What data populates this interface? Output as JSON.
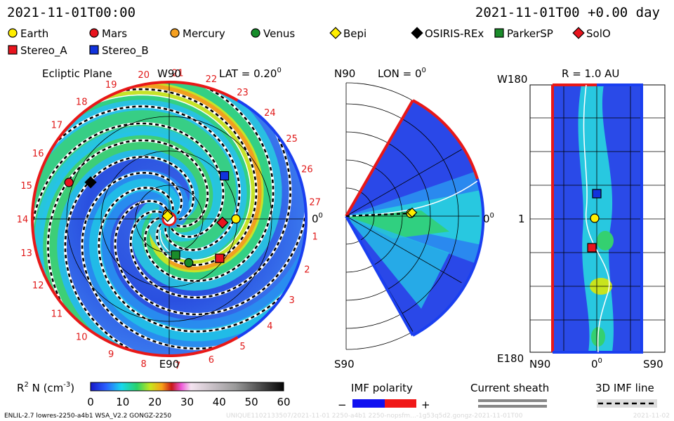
{
  "header": {
    "time_left": "2021-11-01T00:00",
    "time_right": "2021-11-01T00 +0.00 day"
  },
  "legend": [
    {
      "label": "Earth",
      "shape": "circle",
      "color": "#ffee00"
    },
    {
      "label": "Mars",
      "shape": "circle",
      "color": "#e8141e"
    },
    {
      "label": "Mercury",
      "shape": "circle",
      "color": "#f5a020"
    },
    {
      "label": "Venus",
      "shape": "circle",
      "color": "#168c2a"
    },
    {
      "label": "Bepi",
      "shape": "diamond",
      "color": "#ffee00"
    },
    {
      "label": "OSIRIS-REx",
      "shape": "diamond",
      "color": "#000000"
    },
    {
      "label": "ParkerSP",
      "shape": "square",
      "color": "#1a8c2a"
    },
    {
      "label": "SolO",
      "shape": "diamond",
      "color": "#e8141e"
    },
    {
      "label": "Stereo_A",
      "shape": "square",
      "color": "#e8141e"
    },
    {
      "label": "Stereo_B",
      "shape": "square",
      "color": "#1133dd"
    }
  ],
  "panels": {
    "ecliptic": {
      "title": "Ecliptic Plane",
      "top": "W90",
      "lat": "LAT = 0.20",
      "lat_sup": "0",
      "right": "0",
      "right_sup": "0",
      "bottom": "E90"
    },
    "meridional": {
      "top_left": "N90",
      "lon": "LON = 0",
      "lon_sup": "0",
      "right": "0",
      "right_sup": "0",
      "bottom": "S90"
    },
    "radial": {
      "r": "R = 1.0 AU",
      "top_left": "W180",
      "mid_left": "1",
      "bottom_left": "E180",
      "n90": "N90",
      "center": "0",
      "center_sup": "0",
      "s90": "S90"
    }
  },
  "chart_data": {
    "type": "heatmap",
    "carrington_labels": [
      "20",
      "21",
      "22",
      "23",
      "24",
      "25",
      "26",
      "27",
      "1",
      "2",
      "3",
      "4",
      "5",
      "6",
      "7",
      "8",
      "9",
      "10",
      "11",
      "12",
      "13",
      "14",
      "15",
      "16",
      "17",
      "18",
      "19"
    ],
    "bodies": [
      {
        "name": "Earth",
        "r_au": 1.0,
        "lon_deg": 0
      },
      {
        "name": "Mercury",
        "r_au": 0.08,
        "lon_deg": 110
      },
      {
        "name": "Bepi",
        "r_au": 0.05,
        "lon_deg": 120
      },
      {
        "name": "Venus",
        "r_au": 0.72,
        "lon_deg": -66
      },
      {
        "name": "Mars",
        "r_au": 1.6,
        "lon_deg": 160
      },
      {
        "name": "OSIRIS-REx",
        "r_au": 1.3,
        "lon_deg": 155
      },
      {
        "name": "ParkerSP",
        "r_au": 0.55,
        "lon_deg": -80
      },
      {
        "name": "SolO",
        "r_au": 0.8,
        "lon_deg": -4
      },
      {
        "name": "Stereo_A",
        "r_au": 0.96,
        "lon_deg": -38
      },
      {
        "name": "Stereo_B",
        "r_au": 1.05,
        "lon_deg": 38
      }
    ],
    "colorbar": {
      "label": "R² N (cm⁻³)",
      "label_text": "R",
      "label_sup": "2",
      "label_rest": " N (cm",
      "label_sup2": "-3",
      "label_end": ")",
      "ticks": [
        "0",
        "10",
        "20",
        "30",
        "40",
        "50",
        "60"
      ],
      "range": [
        0,
        60
      ]
    }
  },
  "footer": {
    "imf_title": "IMF polarity",
    "imf_minus": "−",
    "imf_plus": "+",
    "sheath_title": "Current sheath",
    "field_title": "3D IMF line",
    "model_info": "ENLIL-2.7 lowres-2250-a4b1 WSA_V2.2 GONGZ-2250",
    "faint_info": "UNIQUE1102133507/2021-11-01 2250-a4b1 2250-nopsfm...-1g53q5d2.gongz-2021-11-01T00",
    "faint_date": "2021-11-02"
  }
}
